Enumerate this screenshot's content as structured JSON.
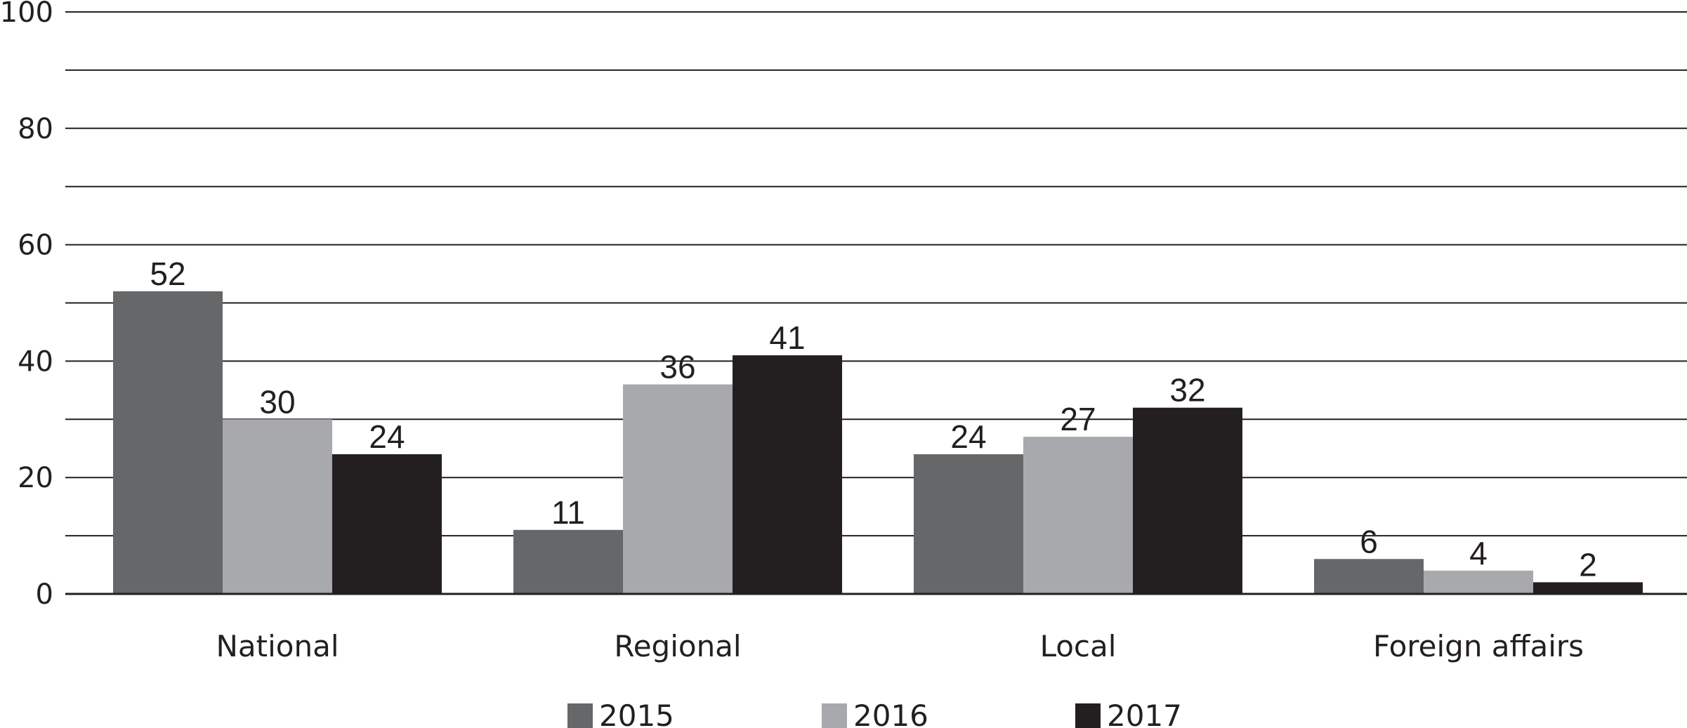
{
  "chart_data": {
    "type": "bar",
    "categories": [
      "National",
      "Regional",
      "Local",
      "Foreign affairs"
    ],
    "series": [
      {
        "name": "2015",
        "color": "#666769",
        "values": [
          52,
          11,
          24,
          6
        ]
      },
      {
        "name": "2016",
        "color": "#a7a9ac",
        "values": [
          30,
          36,
          27,
          4
        ]
      },
      {
        "name": "2017",
        "color": "#231f20",
        "values": [
          24,
          41,
          32,
          2
        ]
      }
    ],
    "value_labels": [
      [
        "52",
        "11",
        "24",
        "6"
      ],
      [
        "30",
        "36",
        "27",
        "4"
      ],
      [
        "24",
        "41",
        "32",
        "2"
      ]
    ],
    "title": "",
    "xlabel": "",
    "ylabel": "",
    "ylim": [
      0,
      100
    ],
    "yticks": [
      "0",
      "20",
      "40",
      "60",
      "80",
      "100"
    ],
    "grid": true,
    "legend_position": "bottom"
  }
}
